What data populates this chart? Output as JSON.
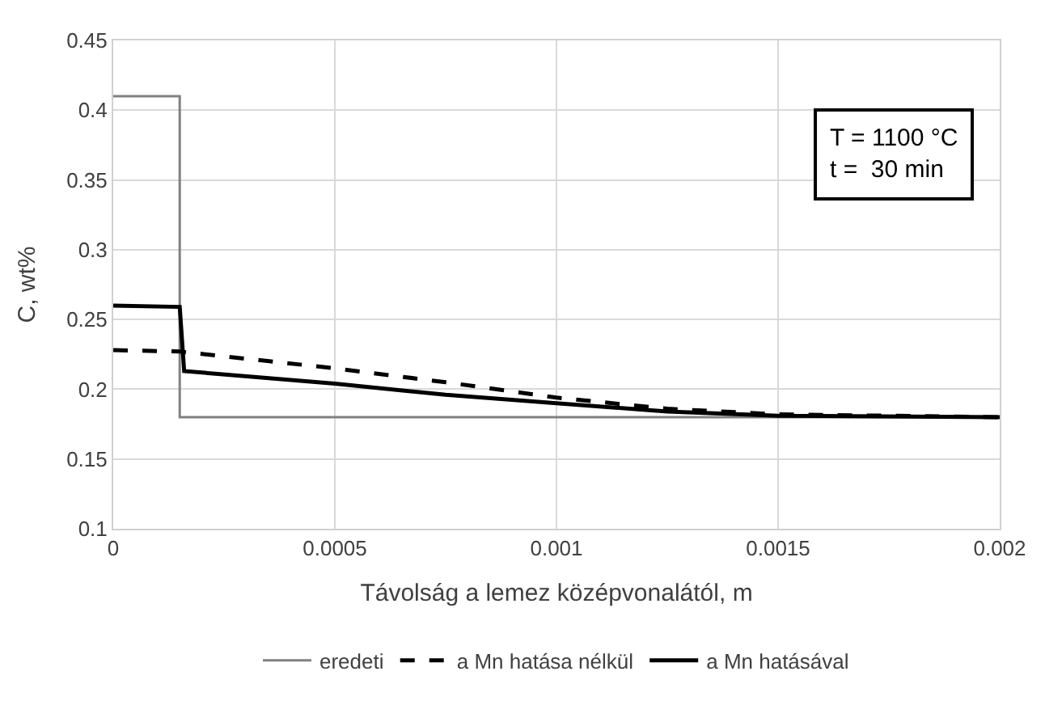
{
  "chart_data": {
    "type": "line",
    "xlabel": "Távolság a lemez középvonalától, m",
    "ylabel": "C, wt%",
    "xlim": [
      0,
      0.002
    ],
    "xticks": [
      0,
      0.0005,
      0.001,
      0.0015,
      0.002
    ],
    "ylim": [
      0.1,
      0.45
    ],
    "yticks": [
      0.1,
      0.15,
      0.2,
      0.25,
      0.3,
      0.35,
      0.4,
      0.45
    ],
    "grid": true,
    "legend": "bottom",
    "marker": "none",
    "annotations": [
      "T = 1100 °C\nt =  30 min"
    ],
    "series": [
      {
        "name": "eredeti",
        "color": "#808080",
        "line_style": "solid",
        "x": [
          0,
          0.00015,
          0.00015,
          0.002
        ],
        "values": [
          0.41,
          0.41,
          0.18,
          0.18
        ]
      },
      {
        "name": "a Mn hatása nélkül",
        "color": "#000000",
        "line_style": "dashed",
        "x": [
          0,
          0.00015,
          0.0005,
          0.00075,
          0.001,
          0.00125,
          0.0015,
          0.002
        ],
        "values": [
          0.228,
          0.227,
          0.215,
          0.205,
          0.194,
          0.186,
          0.182,
          0.18
        ]
      },
      {
        "name": "a Mn hatásával",
        "color": "#000000",
        "line_style": "solid",
        "x": [
          0,
          0.00015,
          0.00016,
          0.0005,
          0.00075,
          0.001,
          0.00125,
          0.0015,
          0.002
        ],
        "values": [
          0.26,
          0.259,
          0.213,
          0.204,
          0.196,
          0.19,
          0.184,
          0.181,
          0.18
        ]
      }
    ]
  }
}
